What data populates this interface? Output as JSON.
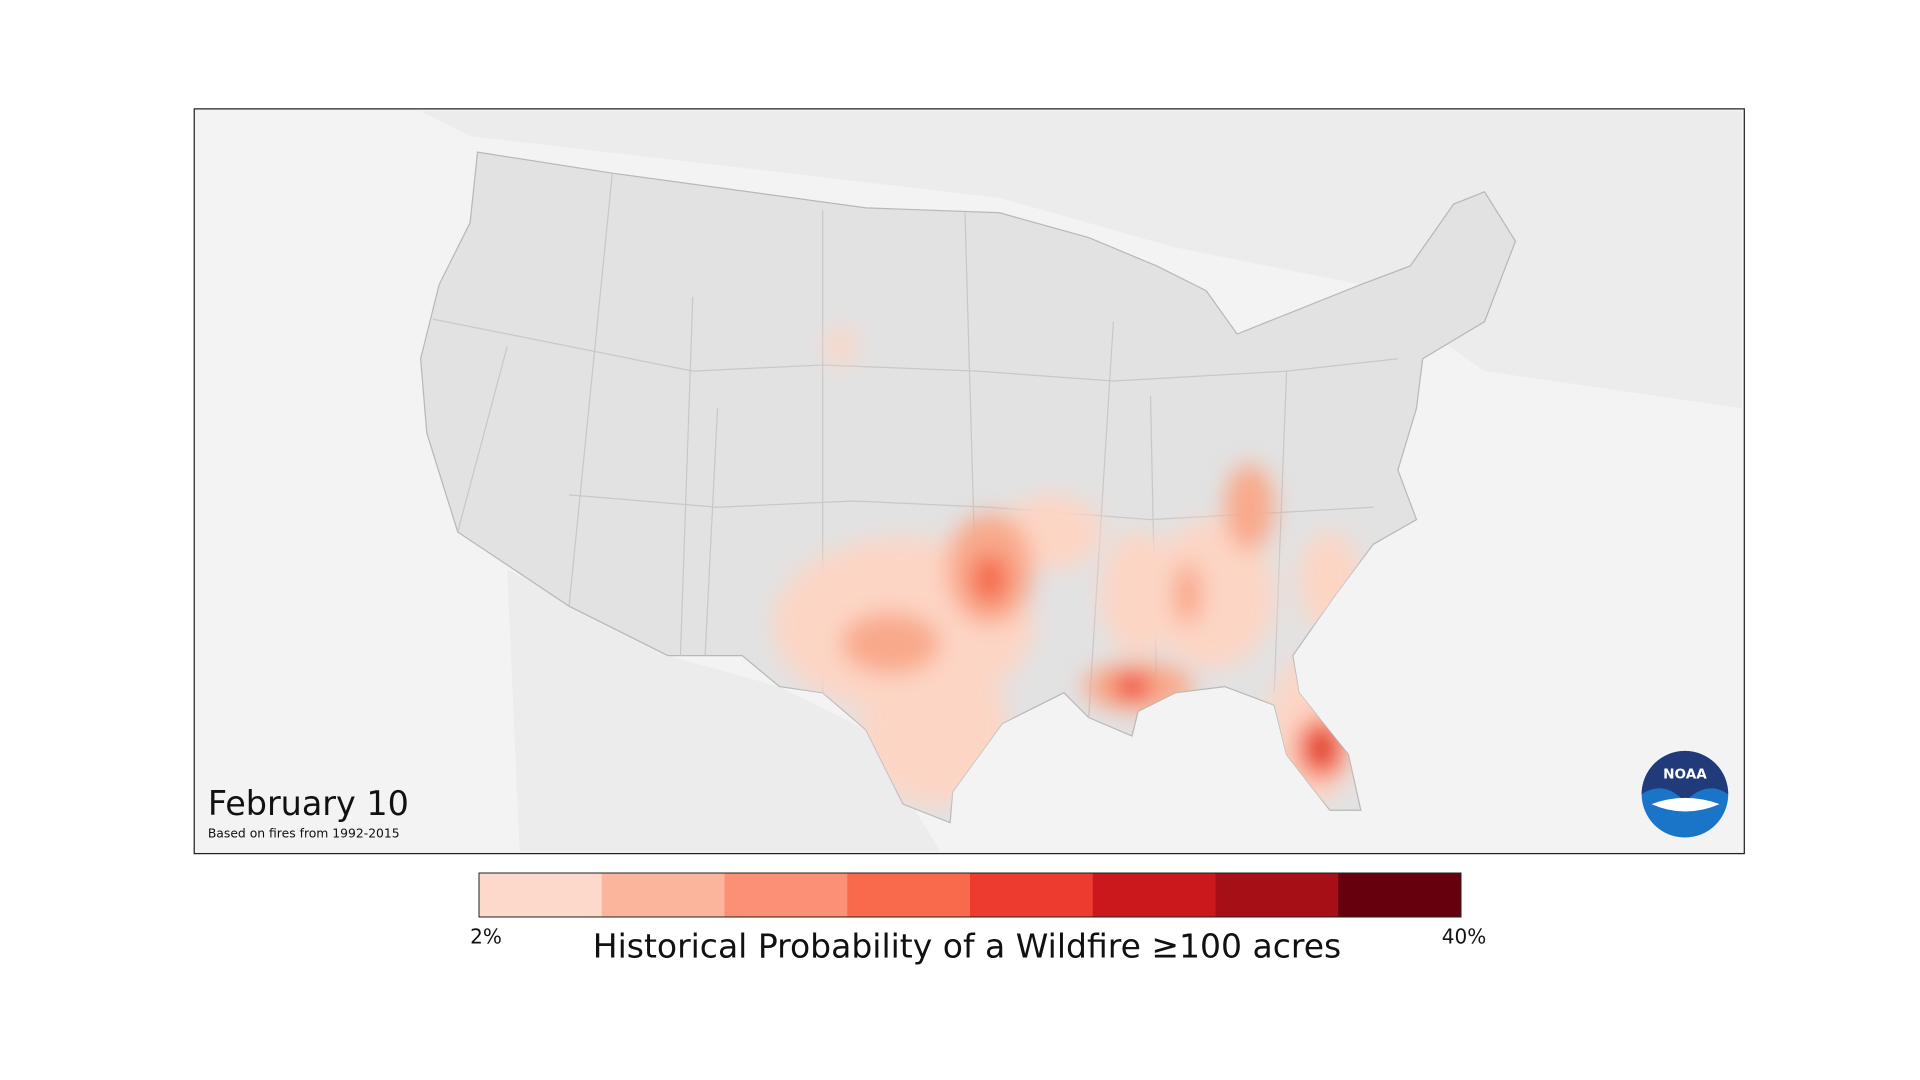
{
  "map": {
    "date": "February 10",
    "subtitle": "Based on fires from 1992-2015",
    "logo": "NOAA"
  },
  "legend": {
    "title": "Historical Probability of a Wildfire ≥100 acres",
    "min_label": "2%",
    "max_label": "40%",
    "colors": [
      "#fdd9cb",
      "#fbb59c",
      "#fb9074",
      "#f96a4c",
      "#ee3b2f",
      "#cb181d",
      "#a50f15",
      "#67000d"
    ]
  }
}
